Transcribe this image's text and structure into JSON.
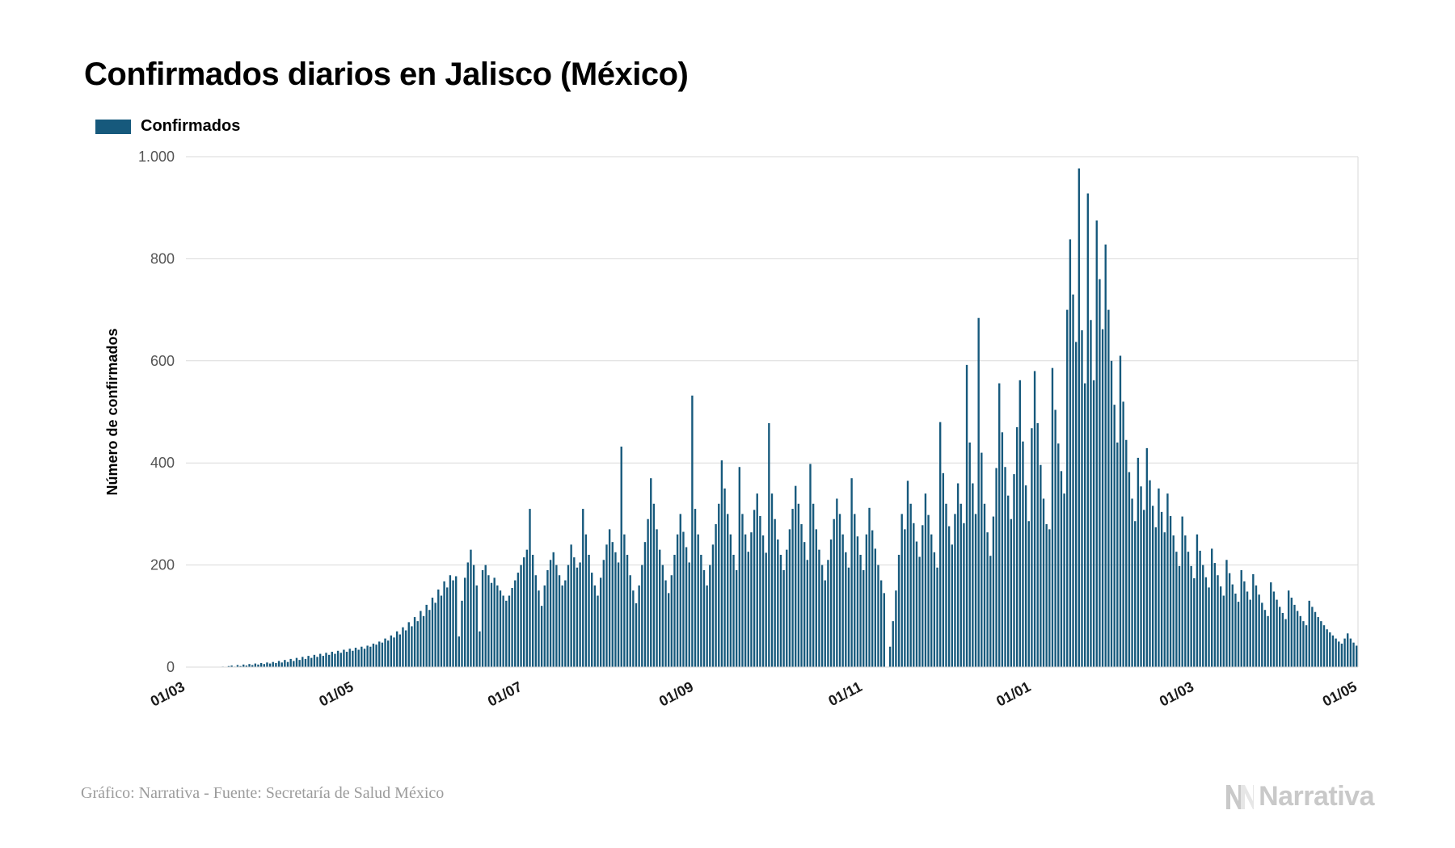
{
  "title": "Confirmados diarios en Jalisco (México)",
  "legend": {
    "label": "Confirmados",
    "color": "#16597c"
  },
  "caption": "Gráfico: Narrativa - Fuente: Secretaría de Salud México",
  "brand": "Narrativa",
  "chart": {
    "type": "bar",
    "background_color": "#ffffff",
    "grid_color": "#d9d9d9",
    "axis_color": "#555555",
    "tick_label_color": "#555555",
    "tick_fontsize": 18,
    "ylabel": "Número de confirmados",
    "ylabel_fontsize": 18,
    "ylabel_weight": "700",
    "ylim": [
      0,
      1000
    ],
    "ytick_step": 200,
    "ytick_labels": [
      "0",
      "200",
      "400",
      "600",
      "800",
      "1.000"
    ],
    "xtick_labels": [
      "01/03",
      "01/05",
      "01/07",
      "01/09",
      "01/11",
      "01/01",
      "01/03",
      "01/05"
    ],
    "xtick_positions": [
      0,
      61,
      122,
      184,
      245,
      306,
      365,
      424
    ],
    "xtick_rotation_deg": -28,
    "bar_color": "#16597c",
    "bar_gap_ratio": 0.35,
    "values": [
      0,
      0,
      0,
      0,
      0,
      0,
      0,
      0,
      0,
      0,
      0,
      0,
      1,
      0,
      2,
      3,
      1,
      4,
      2,
      5,
      3,
      6,
      4,
      7,
      5,
      8,
      6,
      9,
      7,
      10,
      8,
      12,
      9,
      14,
      10,
      16,
      12,
      18,
      14,
      20,
      16,
      22,
      18,
      24,
      20,
      26,
      22,
      28,
      24,
      30,
      26,
      32,
      28,
      34,
      30,
      36,
      32,
      38,
      34,
      40,
      36,
      42,
      40,
      46,
      44,
      50,
      48,
      56,
      52,
      62,
      58,
      70,
      64,
      78,
      72,
      88,
      80,
      98,
      90,
      110,
      100,
      122,
      112,
      136,
      126,
      152,
      140,
      168,
      156,
      180,
      170,
      178,
      60,
      130,
      175,
      205,
      230,
      200,
      160,
      70,
      190,
      200,
      180,
      165,
      175,
      160,
      150,
      140,
      130,
      140,
      155,
      170,
      185,
      200,
      215,
      230,
      310,
      220,
      180,
      150,
      120,
      160,
      190,
      210,
      225,
      200,
      180,
      160,
      170,
      200,
      240,
      215,
      195,
      205,
      310,
      260,
      220,
      185,
      160,
      140,
      175,
      210,
      240,
      270,
      245,
      225,
      205,
      432,
      260,
      220,
      180,
      150,
      125,
      160,
      200,
      245,
      290,
      370,
      320,
      270,
      230,
      200,
      170,
      145,
      180,
      220,
      260,
      300,
      265,
      235,
      205,
      532,
      310,
      260,
      220,
      190,
      160,
      200,
      240,
      280,
      320,
      405,
      350,
      300,
      260,
      220,
      190,
      392,
      300,
      260,
      226,
      264,
      308,
      340,
      296,
      258,
      224,
      478,
      340,
      290,
      250,
      220,
      190,
      230,
      270,
      310,
      355,
      320,
      280,
      245,
      210,
      398,
      320,
      270,
      230,
      200,
      170,
      210,
      250,
      290,
      330,
      300,
      260,
      225,
      195,
      370,
      300,
      256,
      220,
      190,
      260,
      312,
      268,
      232,
      200,
      170,
      145,
      0,
      40,
      90,
      150,
      220,
      300,
      270,
      365,
      320,
      282,
      246,
      216,
      278,
      340,
      298,
      260,
      225,
      195,
      480,
      380,
      320,
      276,
      240,
      300,
      360,
      320,
      282,
      592,
      440,
      360,
      300,
      684,
      420,
      320,
      264,
      218,
      295,
      390,
      556,
      460,
      392,
      336,
      290,
      378,
      470,
      562,
      442,
      356,
      286,
      468,
      580,
      478,
      396,
      330,
      280,
      270,
      586,
      504,
      438,
      384,
      340,
      700,
      838,
      730,
      637,
      977,
      660,
      556,
      928,
      680,
      562,
      875,
      760,
      662,
      828,
      700,
      600,
      514,
      440,
      610,
      520,
      445,
      382,
      330,
      286,
      410,
      354,
      308,
      429,
      366,
      316,
      274,
      350,
      304,
      264,
      340,
      296,
      258,
      226,
      198,
      295,
      258,
      226,
      198,
      174,
      260,
      228,
      200,
      176,
      156,
      232,
      204,
      180,
      158,
      140,
      210,
      184,
      162,
      144,
      128,
      190,
      168,
      148,
      132,
      182,
      160,
      142,
      126,
      112,
      100,
      166,
      148,
      132,
      118,
      106,
      94,
      150,
      136,
      122,
      110,
      100,
      90,
      82,
      130,
      118,
      108,
      98,
      90,
      82,
      74,
      68,
      62,
      56,
      50,
      46,
      56,
      66,
      56,
      48,
      42
    ]
  }
}
